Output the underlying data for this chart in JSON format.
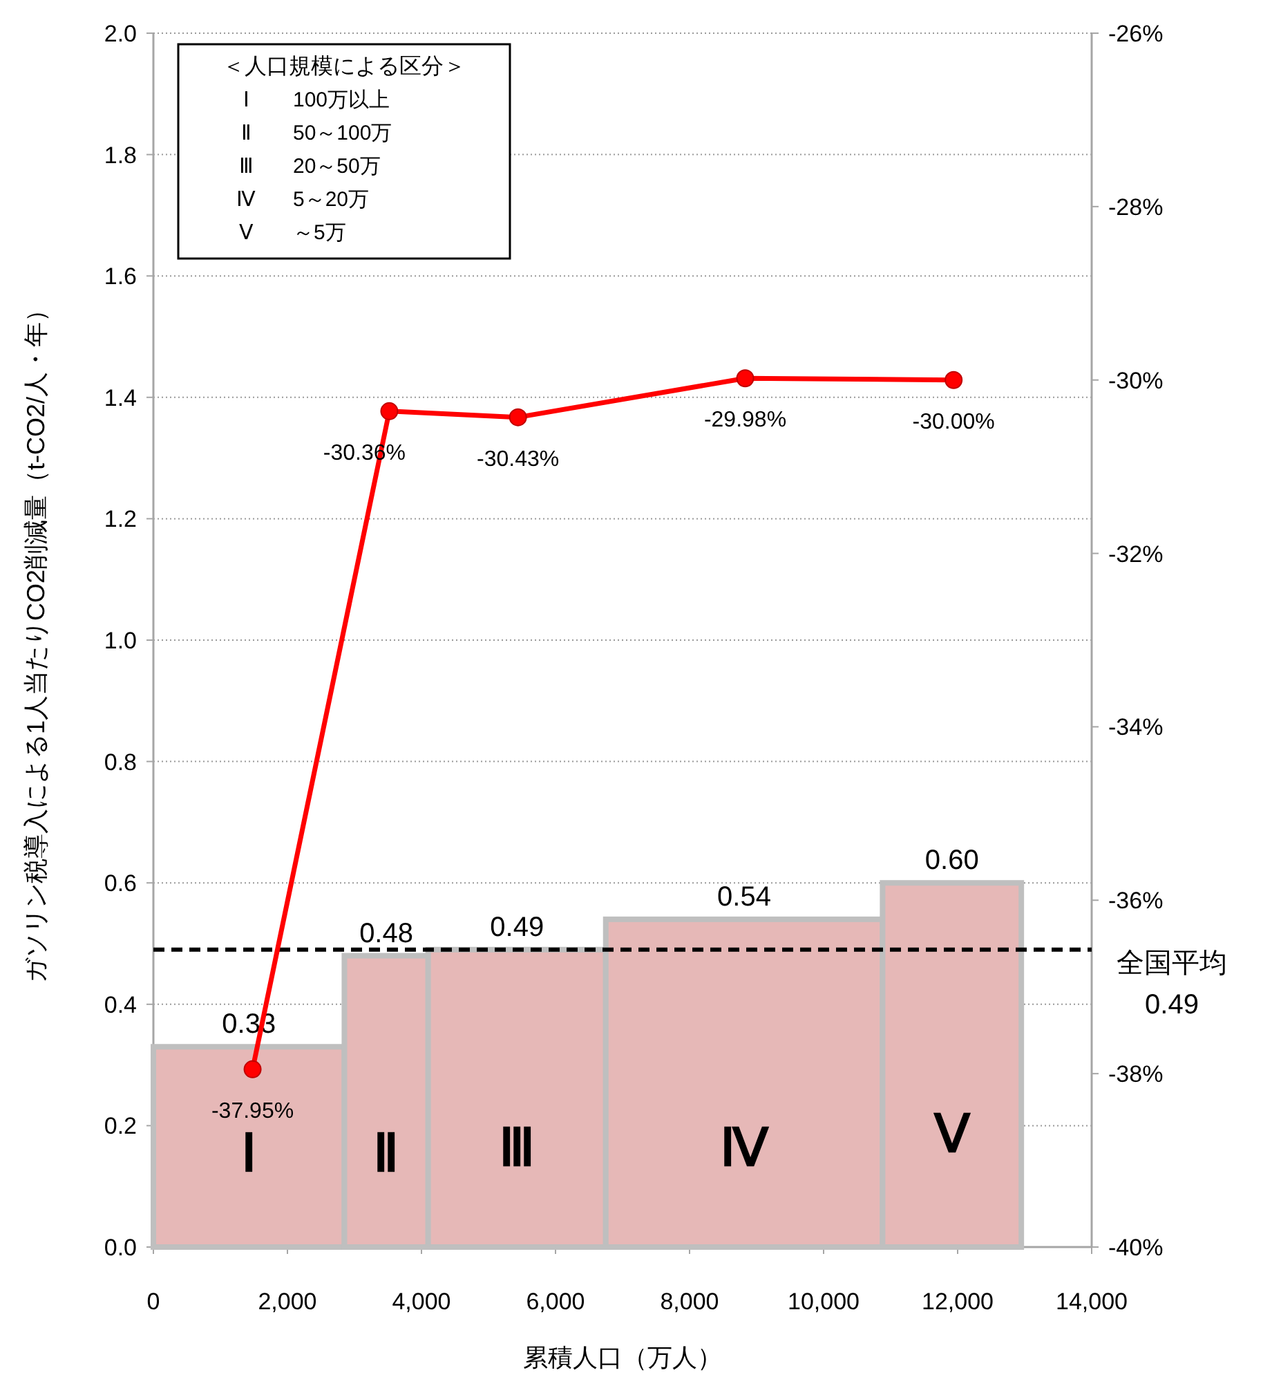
{
  "chart_data": {
    "type": "histogram",
    "xlabel": "累積人口（万人）",
    "ylabel": "ガソリン税導入による1人当たりCO2削減量（t-CO2/人・年）",
    "bins": [
      0,
      2850,
      4100,
      6750,
      10880,
      12950
    ],
    "xlim": [
      0,
      14000
    ],
    "xticks": [
      {
        "value": 0,
        "label": "0"
      },
      {
        "value": 2000,
        "label": "2,000"
      },
      {
        "value": 4000,
        "label": "4,000"
      },
      {
        "value": 6000,
        "label": "6,000"
      },
      {
        "value": 8000,
        "label": "8,000"
      },
      {
        "value": 10000,
        "label": "10,000"
      },
      {
        "value": 12000,
        "label": "12,000"
      },
      {
        "value": 14000,
        "label": "14,000"
      }
    ],
    "ylim": [
      0,
      2.0
    ],
    "yticks": [
      {
        "value": 0,
        "label": "0.0"
      },
      {
        "value": 0.2,
        "label": "0.2"
      },
      {
        "value": 0.4,
        "label": "0.4"
      },
      {
        "value": 0.6,
        "label": "0.6"
      },
      {
        "value": 0.8,
        "label": "0.8"
      },
      {
        "value": 1.0,
        "label": "1.0"
      },
      {
        "value": 1.2,
        "label": "1.2"
      },
      {
        "value": 1.4,
        "label": "1.4"
      },
      {
        "value": 1.6,
        "label": "1.6"
      },
      {
        "value": 1.8,
        "label": "1.8"
      },
      {
        "value": 2.0,
        "label": "2.0"
      }
    ],
    "y2lim": [
      -40,
      -26
    ],
    "y2ticks": [
      {
        "value": -40,
        "label": "-40%"
      },
      {
        "value": -38,
        "label": "-38%"
      },
      {
        "value": -36,
        "label": "-36%"
      },
      {
        "value": -34,
        "label": "-34%"
      },
      {
        "value": -32,
        "label": "-32%"
      },
      {
        "value": -30,
        "label": "-30%"
      },
      {
        "value": -28,
        "label": "-28%"
      },
      {
        "value": -26,
        "label": "-26%"
      }
    ],
    "grid": "y",
    "series": [
      {
        "color": "#e6b8b7",
        "values": [
          0.33,
          0.48,
          0.49,
          0.54,
          0.6
        ],
        "value_labels": [
          "0.33",
          "0.48",
          "0.49",
          "0.54",
          "0.60"
        ]
      },
      {
        "type": "line",
        "axis": "y2",
        "color": "#ff0000",
        "marker": "circle",
        "x": [
          1480,
          3520,
          5440,
          8830,
          11940
        ],
        "values": [
          -37.95,
          -30.36,
          -30.43,
          -29.98,
          -30.0
        ],
        "value_labels": [
          "-37.95%",
          "-30.36%",
          "-30.43%",
          "-29.98%",
          "-30.00%"
        ]
      }
    ],
    "ref_lines": [
      {
        "axis": "y",
        "value": 0.49,
        "label": "全国平均\n0.49",
        "color": "#000000",
        "line_style": "dashed"
      }
    ],
    "annotations": [
      "＜人口規模による区分＞\nⅠ　100万以上\nⅡ　50～100万\nⅢ　20～50万\nⅣ　5～20万\nⅤ　～5万",
      "Ⅰ",
      "Ⅱ",
      "Ⅲ",
      "Ⅳ",
      "Ⅴ"
    ]
  }
}
